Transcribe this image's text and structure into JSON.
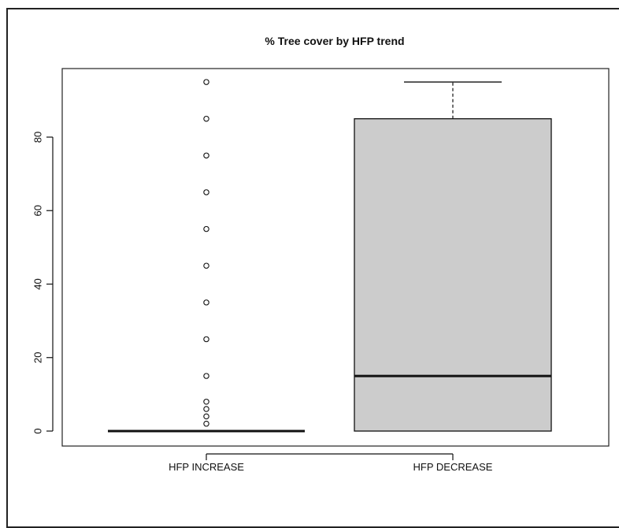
{
  "chart_data": {
    "type": "box",
    "title": "% Tree cover by HFP trend",
    "xlabel": "",
    "ylabel": "",
    "categories": [
      "HFP INCREASE",
      "HFP DECREASE"
    ],
    "ylim": [
      -4,
      99
    ],
    "yticks": [
      0,
      20,
      40,
      60,
      80
    ],
    "grid": false,
    "boxes": [
      {
        "name": "HFP INCREASE",
        "min": 0,
        "q1": 0,
        "median": 0,
        "q3": 0,
        "max": 0,
        "outliers": [
          2,
          4,
          6,
          8,
          15,
          25,
          35,
          45,
          55,
          65,
          75,
          85,
          95
        ]
      },
      {
        "name": "HFP DECREASE",
        "min": 0,
        "q1": 0,
        "median": 15,
        "q3": 85,
        "max": 95,
        "outliers": []
      }
    ],
    "colors": {
      "box_fill": "#cccccc",
      "stroke": "#111111"
    }
  }
}
